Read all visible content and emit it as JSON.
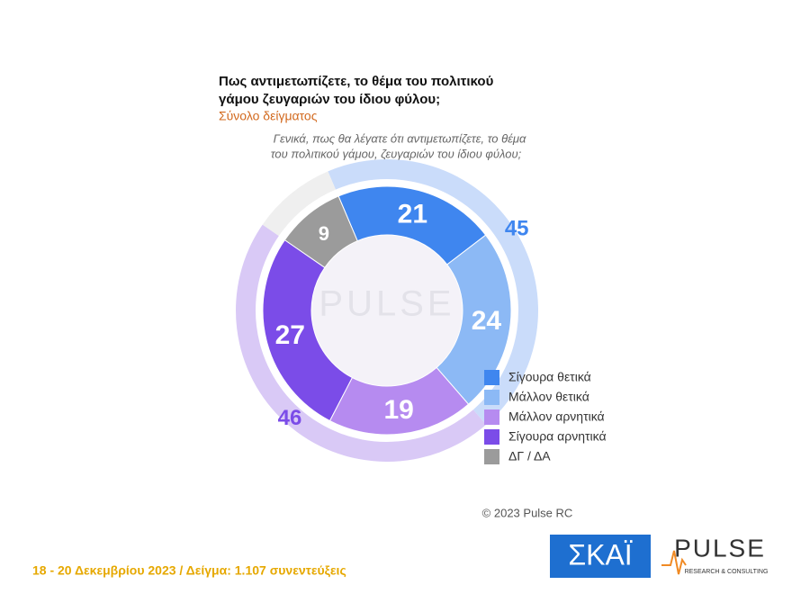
{
  "chart_data": {
    "type": "donut",
    "title": [
      "Πως αντιμετωπίζετε, το θέμα του πολιτικού",
      "γάμου ζευγαριών του ίδιου φύλου;"
    ],
    "subtitle": "Σύνολο δείγματος",
    "question": [
      "Γενικά, πως θα λέγατε ότι αντιμετωπίζετε, το θέμα",
      "του πολιτικού γάμου, ζευγαριών του ίδιου φύλου;"
    ],
    "categories": [
      "Σίγουρα θετικά",
      "Μάλλον θετικά",
      "Μάλλον αρνητικά",
      "Σίγουρα αρνητικά",
      "ΔΓ / ΔΑ"
    ],
    "values": [
      21,
      24,
      19,
      27,
      9
    ],
    "colors": [
      "#3f86ef",
      "#8cb9f5",
      "#b68bf0",
      "#7b4ce8",
      "#9b9b9b"
    ],
    "outer": {
      "values": [
        45,
        46,
        9
      ],
      "colors": [
        "#cadcfa",
        "#d9c9f6",
        "#efefef"
      ]
    }
  },
  "watermark": "PULSE",
  "copyright": "© 2023 Pulse RC",
  "footer": "18 - 20  Δεκεμβρίου  2023  /  Δείγμα:  1.107 συνεντεύξεις",
  "logos": {
    "skai": "ΣΚΑΪ",
    "pulse": "PULSE",
    "pulse_sub": "RESEARCH & CONSULTING"
  }
}
